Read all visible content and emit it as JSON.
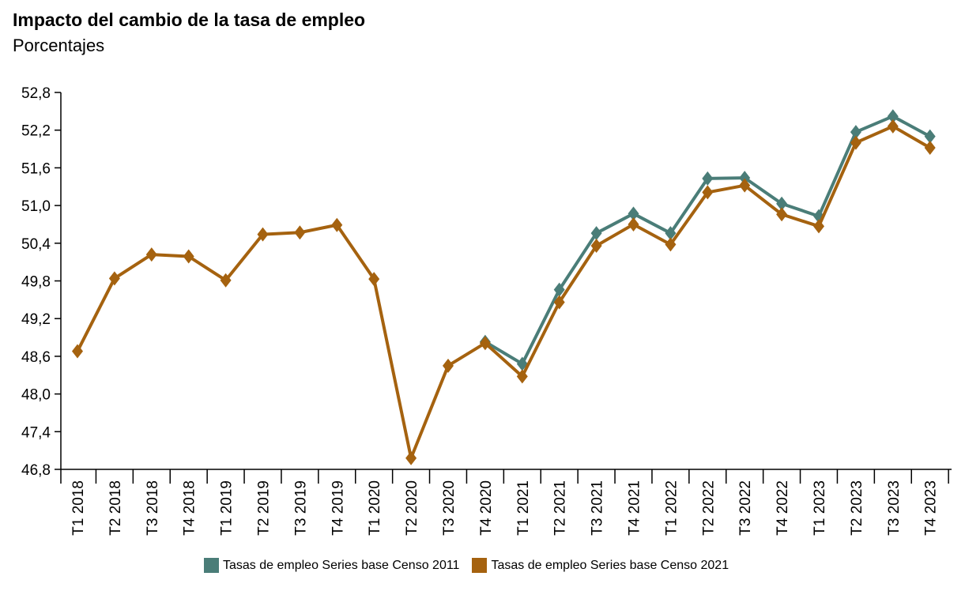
{
  "title": "Impacto del cambio de la tasa de empleo",
  "subtitle": "Porcentajes",
  "chart_data": {
    "type": "line",
    "title": "Impacto del cambio de la tasa de empleo",
    "subtitle": "Porcentajes",
    "xlabel": "",
    "ylabel": "",
    "ylim": [
      46.8,
      52.8
    ],
    "yticks": [
      "46,8",
      "47,4",
      "48,0",
      "48,6",
      "49,2",
      "49,8",
      "50,4",
      "51,0",
      "51,6",
      "52,2",
      "52,8"
    ],
    "categories": [
      "T1 2018",
      "T2 2018",
      "T3 2018",
      "T4 2018",
      "T1 2019",
      "T2 2019",
      "T3 2019",
      "T4 2019",
      "T1 2020",
      "T2 2020",
      "T3 2020",
      "T4 2020",
      "T1 2021",
      "T2 2021",
      "T3 2021",
      "T4 2021",
      "T1 2022",
      "T2 2022",
      "T3 2022",
      "T4 2022",
      "T1 2023",
      "T2 2023",
      "T3 2023",
      "T4 2023"
    ],
    "series": [
      {
        "name": "Tasas de empleo Series base Censo 2011",
        "color": "#4a7d78",
        "values": [
          null,
          null,
          null,
          null,
          null,
          null,
          null,
          null,
          null,
          null,
          null,
          48.83,
          48.48,
          49.66,
          50.56,
          50.87,
          50.56,
          51.43,
          51.44,
          51.03,
          50.83,
          52.17,
          52.42,
          52.1
        ]
      },
      {
        "name": "Tasas de empleo Series base Censo 2021",
        "color": "#a5620f",
        "values": [
          48.68,
          49.84,
          50.22,
          50.19,
          49.81,
          50.54,
          50.57,
          50.69,
          49.83,
          46.98,
          48.45,
          48.81,
          48.28,
          49.46,
          50.36,
          50.7,
          50.38,
          51.21,
          51.32,
          50.86,
          50.67,
          52.0,
          52.26,
          51.92
        ]
      }
    ],
    "grid": false,
    "legend_position": "bottom"
  }
}
